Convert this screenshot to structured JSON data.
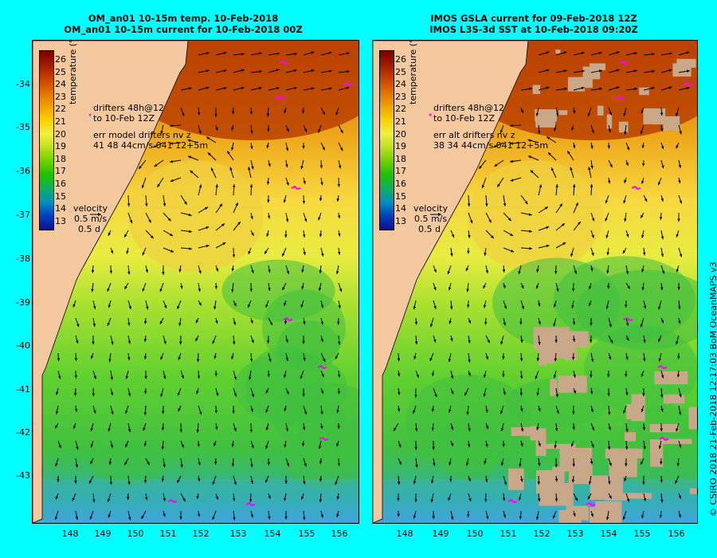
{
  "titles": {
    "left": [
      "OM_an01 10-15m temp. 10-Feb-2018",
      "OM_an01 10-15m current for 10-Feb-2018 00Z"
    ],
    "right": [
      "IMOS GSLA current for 09-Feb-2018 12Z",
      "IMOS L3S-3d SST at 10-Feb-2018 09:20Z"
    ]
  },
  "y_ticks": [
    "-34",
    "-35",
    "-36",
    "-37",
    "-38",
    "-39",
    "-40",
    "-41",
    "-42",
    "-43"
  ],
  "x_ticks": [
    "148",
    "149",
    "150",
    "151",
    "152",
    "153",
    "154",
    "155",
    "156"
  ],
  "colorbar": {
    "labels": [
      "26",
      "25",
      "24",
      "23",
      "22",
      "21",
      "20",
      "19",
      "18",
      "17",
      "16",
      "15",
      "14",
      "13"
    ],
    "title": "temperature (°C)",
    "colors": [
      "#7a0000",
      "#a01a00",
      "#c84000",
      "#e07000",
      "#f0a000",
      "#f8d000",
      "#f0f040",
      "#c0e020",
      "#70d000",
      "#20c000",
      "#10b060",
      "#0090c0",
      "#0040c0",
      "#101090"
    ]
  },
  "legend_left": {
    "drifters": "drifters 48h@12",
    "drifters_date": "to 10-Feb 12Z",
    "err1": "err model drifters nv z",
    "err2": "41 48 44cm/s 041 12+5m",
    "velocity": "velocity",
    "scale": "0.5 m/s",
    "days": "0.5 d"
  },
  "legend_right": {
    "drifters": "drifters 48h@12",
    "drifters_date": "to 10-Feb 12Z",
    "err1": "err alt drifters nv z",
    "err2": "38 34 44cm/s 041 12+5m",
    "velocity": "velocity",
    "scale": "0.5 m/s",
    "days": "0.5 d"
  },
  "credit": "© CSIRO 2018   21-Feb-2018 12:17:03 BoM OceanMAPS v3",
  "map_extent": {
    "lon": [
      147.1,
      156.6
    ],
    "lat": [
      -33.1,
      -43.9
    ]
  }
}
